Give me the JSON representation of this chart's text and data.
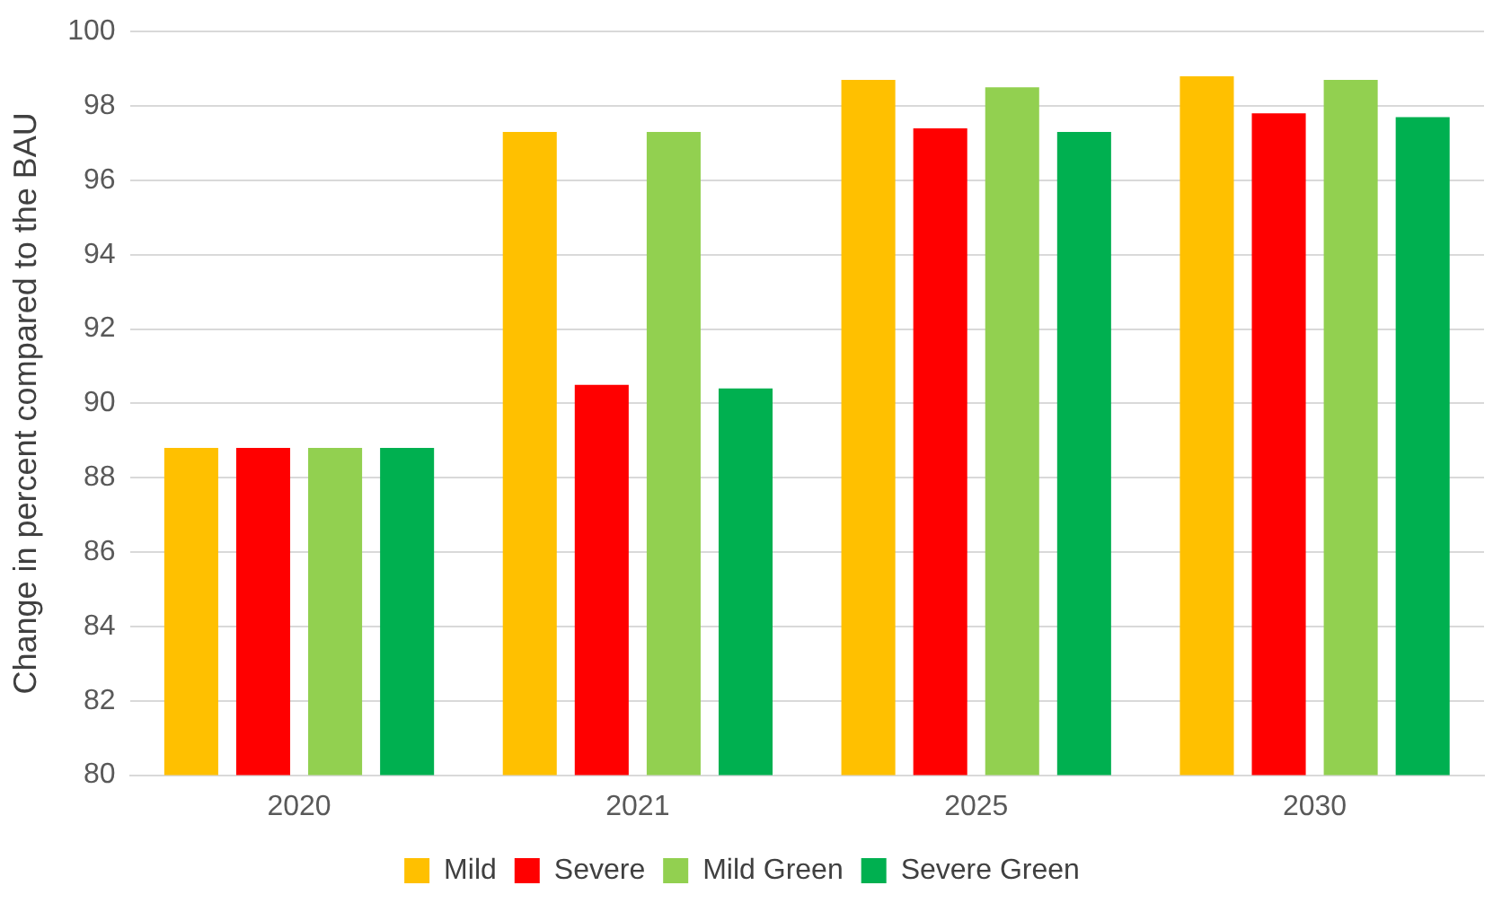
{
  "chart_data": {
    "type": "bar",
    "ylabel": "Change in percent compared to the BAU",
    "categories": [
      "2020",
      "2021",
      "2025",
      "2030"
    ],
    "series": [
      {
        "name": "Mild",
        "color": "#ffc000",
        "values": [
          88.8,
          97.3,
          98.7,
          98.8
        ]
      },
      {
        "name": "Severe",
        "color": "#ff0000",
        "values": [
          88.8,
          90.5,
          97.4,
          97.8
        ]
      },
      {
        "name": "Mild Green",
        "color": "#92d050",
        "values": [
          88.8,
          97.3,
          98.5,
          98.7
        ]
      },
      {
        "name": "Severe Green",
        "color": "#00b050",
        "values": [
          88.8,
          90.4,
          97.3,
          97.7
        ]
      }
    ],
    "ylim": [
      80,
      100
    ],
    "yticks": [
      80,
      82,
      84,
      86,
      88,
      90,
      92,
      94,
      96,
      98,
      100
    ],
    "grid": "y",
    "legend": "bottom"
  }
}
